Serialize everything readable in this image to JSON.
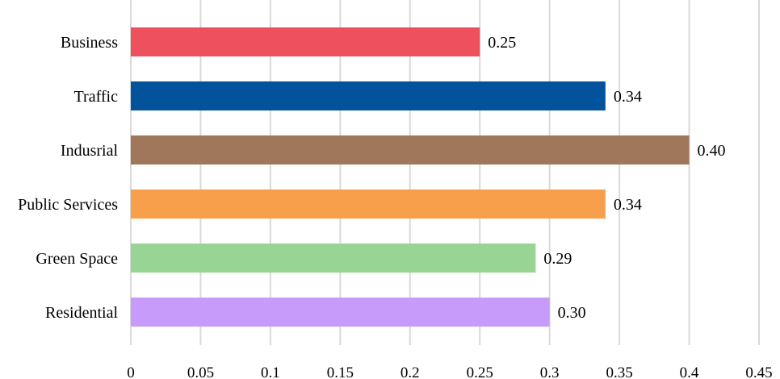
{
  "chart_data": {
    "type": "bar",
    "orientation": "horizontal",
    "title": "",
    "xlabel": "",
    "ylabel": "",
    "categories": [
      "Business",
      "Traffic",
      "Indusrial",
      "Public Services",
      "Green Space",
      "Residential"
    ],
    "values": [
      0.25,
      0.34,
      0.4,
      0.34,
      0.29,
      0.3
    ],
    "value_labels": [
      "0.25",
      "0.34",
      "0.40",
      "0.34",
      "0.29",
      "0.30"
    ],
    "colors": [
      "#ee505e",
      "#02529c",
      "#a0775a",
      "#f79f4b",
      "#98d494",
      "#c79bfa"
    ],
    "xlim": [
      0,
      0.45
    ],
    "xticks": [
      0,
      0.05,
      0.1,
      0.15,
      0.2,
      0.25,
      0.3,
      0.35,
      0.4,
      0.45
    ],
    "xtick_labels": [
      "0",
      "0.05",
      "0.1",
      "0.15",
      "0.2",
      "0.25",
      "0.3",
      "0.35",
      "0.4",
      "0.45"
    ],
    "grid": "vertical",
    "legend": "none"
  }
}
